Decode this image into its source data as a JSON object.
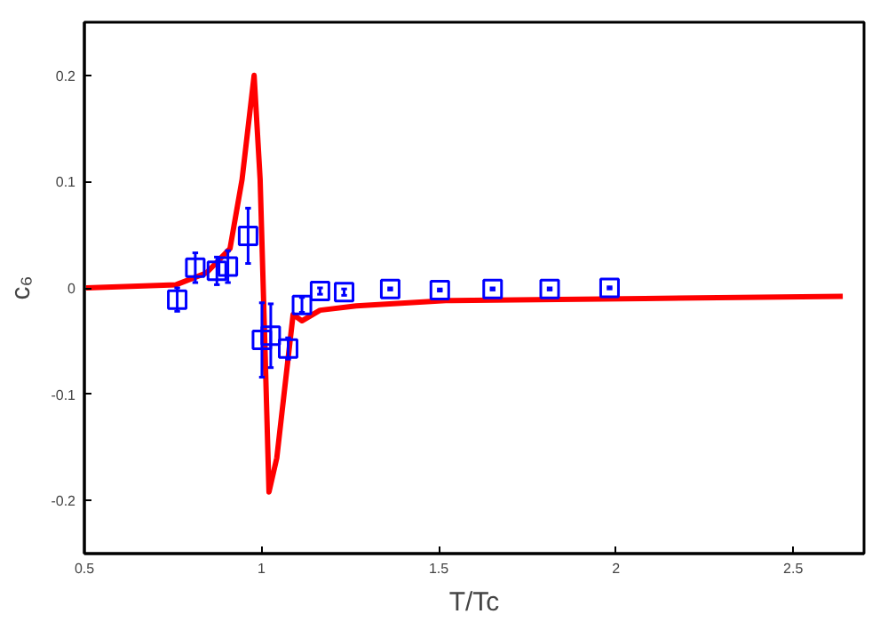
{
  "chart_data": {
    "type": "scatter",
    "xlabel": "T/Tc",
    "ylabel": "c₆",
    "xlim": [
      0.5,
      2.7
    ],
    "ylim": [
      -0.25,
      0.25
    ],
    "xticks": [
      0.5,
      1,
      1.5,
      2,
      2.5
    ],
    "yticks": [
      -0.2,
      -0.1,
      0,
      0.1,
      0.2
    ],
    "grid": false,
    "series": [
      {
        "type": "line",
        "color": "#ff0000",
        "line_style": "solid",
        "marker": "none",
        "x": [
          0.505,
          0.759,
          0.844,
          0.911,
          0.945,
          0.979,
          0.996,
          1.009,
          1.021,
          1.043,
          1.089,
          1.114,
          1.165,
          1.267,
          1.52,
          2.08,
          2.64
        ],
        "values": [
          0,
          0.003,
          0.014,
          0.037,
          0.102,
          0.2,
          0.102,
          -0.049,
          -0.192,
          -0.16,
          -0.025,
          -0.031,
          -0.021,
          -0.017,
          -0.012,
          -0.01,
          -0.008
        ]
      },
      {
        "color": "#0000ff",
        "marker": "square",
        "x": [
          0.762,
          0.813,
          0.874,
          0.905,
          0.962,
          1.001,
          1.026,
          1.075,
          1.114,
          1.165,
          1.233,
          1.363,
          1.503,
          1.652,
          1.813,
          1.982
        ],
        "values": [
          -0.011,
          0.019,
          0.016,
          0.02,
          0.049,
          -0.049,
          -0.045,
          -0.057,
          -0.016,
          -0.003,
          -0.004,
          -0.001,
          -0.002,
          -0.001,
          -0.001,
          0
        ],
        "errors": [
          0.011,
          0.014,
          0.013,
          0.015,
          0.026,
          0.035,
          0.03,
          0.01,
          0.007,
          0.003,
          0.003,
          0.001,
          0.001,
          0.001,
          0.001,
          0.001
        ]
      }
    ]
  }
}
